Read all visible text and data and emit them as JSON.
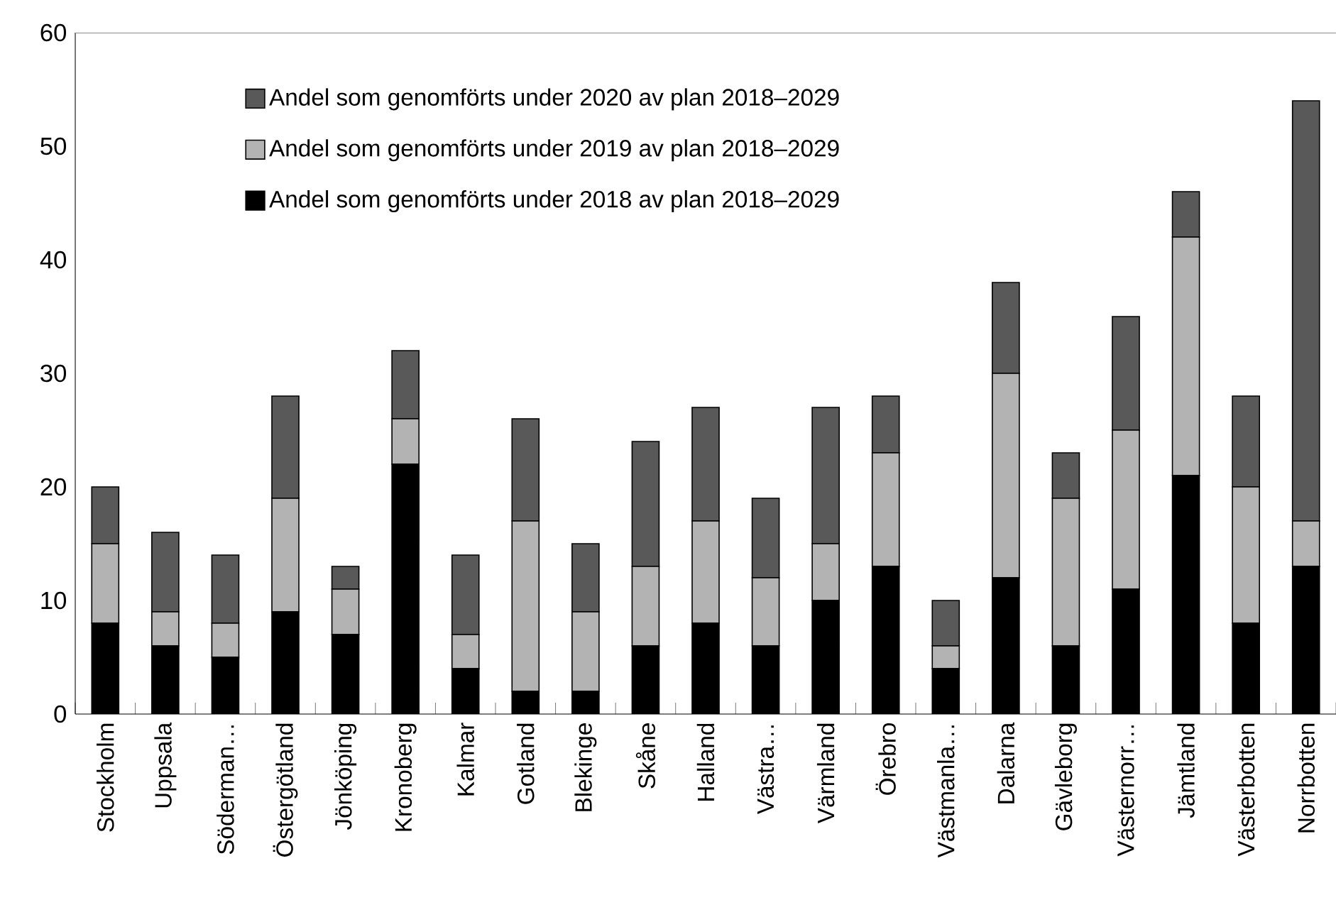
{
  "chart_data": {
    "type": "bar",
    "stacked": true,
    "categories": [
      "Stockholm",
      "Uppsala",
      "Söderman…",
      "Östergötland",
      "Jönköping",
      "Kronoberg",
      "Kalmar",
      "Gotland",
      "Blekinge",
      "Skåne",
      "Halland",
      "Västra…",
      "Värmland",
      "Örebro",
      "Västmanla…",
      "Dalarna",
      "Gävleborg",
      "Västernorr…",
      "Jämtland",
      "Västerbotten",
      "Norrbotten"
    ],
    "series": [
      {
        "name": "Andel som genomförts under 2018 av plan 2018–2029",
        "color": "#000000",
        "values": [
          8,
          6,
          5,
          9,
          7,
          22,
          4,
          2,
          2,
          6,
          8,
          6,
          10,
          13,
          4,
          12,
          6,
          11,
          21,
          8,
          13
        ]
      },
      {
        "name": "Andel som genomförts under 2019 av plan 2018–2029",
        "color": "#b3b3b3",
        "values": [
          7,
          3,
          3,
          10,
          4,
          4,
          3,
          15,
          7,
          7,
          9,
          6,
          5,
          10,
          2,
          18,
          13,
          14,
          21,
          12,
          4
        ]
      },
      {
        "name": "Andel som genomförts under 2020 av plan 2018–2029",
        "color": "#595959",
        "values": [
          5,
          7,
          6,
          9,
          2,
          6,
          7,
          9,
          6,
          11,
          10,
          7,
          12,
          5,
          4,
          8,
          4,
          10,
          4,
          8,
          37
        ]
      }
    ],
    "ylim": [
      0,
      60
    ],
    "yticks": [
      0,
      10,
      20,
      30,
      40,
      50,
      60
    ],
    "grid": false,
    "legend": "top"
  }
}
